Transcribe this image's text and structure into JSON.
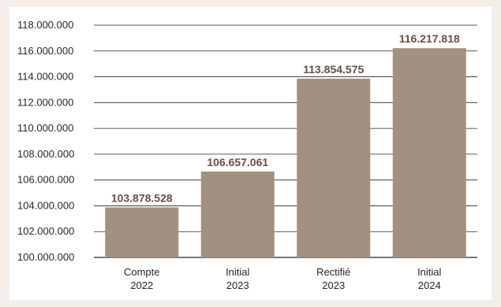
{
  "chart_data": {
    "type": "bar",
    "categories": [
      [
        "Compte",
        "2022"
      ],
      [
        "Initial",
        "2023"
      ],
      [
        "Rectifié",
        "2023"
      ],
      [
        "Initial",
        "2024"
      ]
    ],
    "values": [
      103878528,
      106657061,
      113854575,
      116217818
    ],
    "value_labels": [
      "103.878.528",
      "106.657.061",
      "113.854.575",
      "116.217.818"
    ],
    "y_ticks": [
      100000000,
      102000000,
      104000000,
      106000000,
      108000000,
      110000000,
      112000000,
      114000000,
      116000000,
      118000000
    ],
    "y_tick_labels": [
      "100.000.000",
      "102.000.000",
      "104.000.000",
      "106.000.000",
      "108.000.000",
      "110.000.000",
      "112.000.000",
      "114.000.000",
      "116.000.000",
      "118.000.000"
    ],
    "ylim": [
      100000000,
      118000000
    ],
    "grid": true,
    "colors": {
      "bar": "#a19181",
      "label": "#6b4e43",
      "grid": "#2a2522"
    }
  }
}
